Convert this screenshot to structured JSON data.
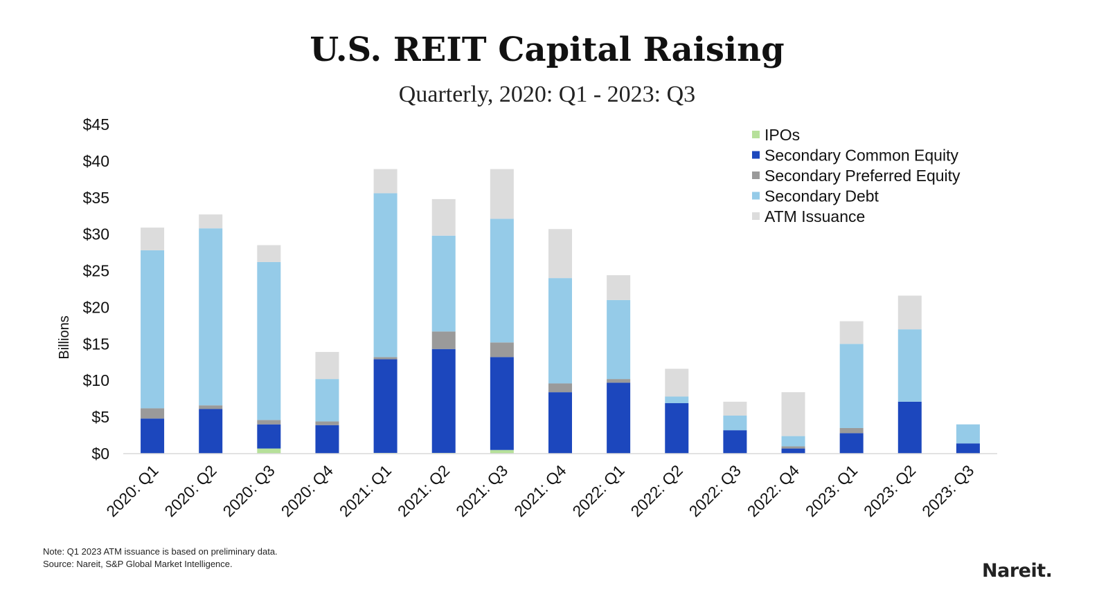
{
  "title": "U.S. REIT Capital Raising",
  "subtitle": "Quarterly, 2020: Q1 - 2023: Q3",
  "note": "Note: Q1 2023 ATM issuance is based on preliminary data.",
  "source": "Source: Nareit, S&P Global Market Intelligence.",
  "brand": "Nareit.",
  "chart_data": {
    "type": "bar",
    "stacked": true,
    "ylabel": "Billions",
    "ylim": [
      0,
      45
    ],
    "yticks": [
      0,
      5,
      10,
      15,
      20,
      25,
      30,
      35,
      40,
      45
    ],
    "ytick_labels": [
      "$0",
      "$5",
      "$10",
      "$15",
      "$20",
      "$25",
      "$30",
      "$35",
      "$40",
      "$45"
    ],
    "grid": false,
    "legend_position": "top-right",
    "categories": [
      "2020: Q1",
      "2020: Q2",
      "2020: Q3",
      "2020: Q4",
      "2021: Q1",
      "2021: Q2",
      "2021: Q3",
      "2021: Q4",
      "2022: Q1",
      "2022: Q2",
      "2022: Q3",
      "2022: Q4",
      "2023: Q1",
      "2023: Q2",
      "2023: Q3"
    ],
    "series": [
      {
        "name": "IPOs",
        "color": "#b6e09a",
        "values": [
          0,
          0,
          0.7,
          0,
          0.1,
          0.1,
          0.5,
          0,
          0,
          0,
          0,
          0,
          0,
          0,
          0
        ]
      },
      {
        "name": "Secondary Common Equity",
        "color": "#1c47bd",
        "values": [
          4.8,
          6.1,
          3.3,
          3.9,
          12.8,
          14.2,
          12.7,
          8.4,
          9.7,
          6.9,
          3.2,
          0.7,
          2.8,
          7.1,
          1.4
        ]
      },
      {
        "name": "Secondary Preferred Equity",
        "color": "#9a9a9a",
        "values": [
          1.4,
          0.5,
          0.6,
          0.5,
          0.3,
          2.4,
          2.0,
          1.2,
          0.5,
          0,
          0,
          0.3,
          0.7,
          0,
          0
        ]
      },
      {
        "name": "Secondary Debt",
        "color": "#95cbe8",
        "values": [
          21.6,
          24.2,
          21.6,
          5.8,
          22.4,
          13.1,
          16.9,
          14.4,
          10.8,
          0.9,
          2.0,
          1.4,
          11.5,
          9.9,
          2.6
        ]
      },
      {
        "name": "ATM Issuance",
        "color": "#dcdcdc",
        "values": [
          3.1,
          1.9,
          2.3,
          3.7,
          3.3,
          5.0,
          6.8,
          6.7,
          3.4,
          3.8,
          1.9,
          6.0,
          3.1,
          4.6,
          0
        ]
      }
    ]
  }
}
